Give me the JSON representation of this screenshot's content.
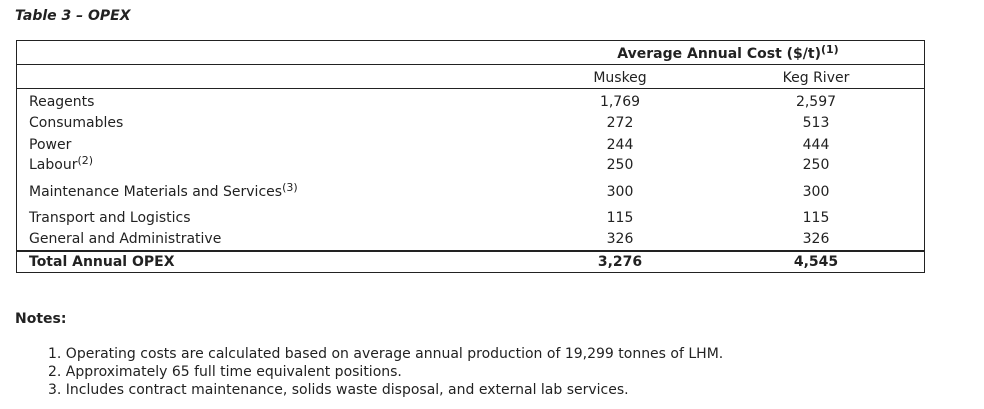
{
  "title": "Table 3 – OPEX",
  "table": {
    "header": {
      "group": "Average Annual Cost ($/t)",
      "group_note": "(1)",
      "columns": [
        "Muskeg",
        "Keg River"
      ]
    },
    "rows": [
      {
        "label": "Reagents",
        "values": [
          "1,769",
          "2,597"
        ]
      },
      {
        "label": "Consumables",
        "values": [
          "272",
          "513"
        ]
      },
      {
        "label": "Power",
        "values": [
          "244",
          "444"
        ]
      },
      {
        "label": "Labour",
        "note": "(2)",
        "values": [
          "250",
          "250"
        ]
      },
      {
        "label": "Maintenance Materials and Services",
        "note": "(3)",
        "values": [
          "300",
          "300"
        ]
      },
      {
        "label": "Transport and Logistics",
        "values": [
          "115",
          "115"
        ]
      },
      {
        "label": "General and Administrative",
        "values": [
          "326",
          "326"
        ]
      }
    ],
    "total": {
      "label": "Total Annual OPEX",
      "values": [
        "3,276",
        "4,545"
      ]
    }
  },
  "notes": {
    "heading": "Notes:",
    "items": [
      "1. Operating costs are calculated based on average annual production of 19,299 tonnes of LHM.",
      "2. Approximately 65 full time equivalent positions.",
      "3. Includes contract maintenance, solids waste disposal, and external lab services."
    ]
  }
}
